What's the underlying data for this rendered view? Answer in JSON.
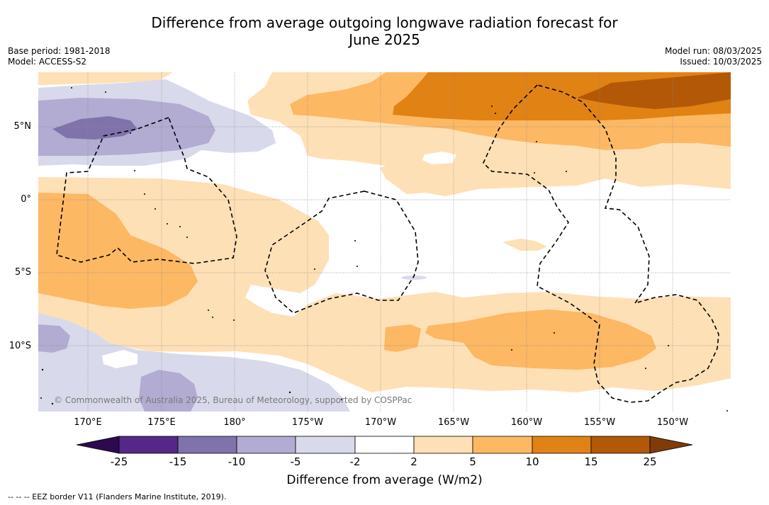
{
  "header": {
    "title_line1": "Difference from average outgoing longwave radiation forecast for",
    "title_line2": "June 2025",
    "base_period": "Base period: 1981-2018",
    "model": "Model: ACCESS-S2",
    "model_run": "Model run: 08/03/2025",
    "issued": "Issued: 10/03/2025"
  },
  "map": {
    "copyright": "© Commonwealth of Australia 2025, Bureau of Meteorology, supported by COSPPac",
    "lat_labels": [
      "5°N",
      "0°",
      "5°S",
      "10°S"
    ],
    "lon_labels": [
      "170°E",
      "175°E",
      "180°",
      "175°W",
      "170°W",
      "165°W",
      "160°W",
      "155°W",
      "150°W"
    ],
    "colors": {
      "neg_25": "#2d0a4e",
      "neg_15": "#542788",
      "neg_10": "#8073ac",
      "neg_5": "#b2abd2",
      "neg_2": "#d8daeb",
      "neutral": "#ffffff",
      "pos_2": "#fee0b6",
      "pos_5": "#fdb863",
      "pos_10": "#e08214",
      "pos_15": "#b35806",
      "pos_25": "#7f3b08"
    }
  },
  "colorbar": {
    "ticks": [
      "-25",
      "-15",
      "-10",
      "-5",
      "-2",
      "2",
      "5",
      "10",
      "15",
      "25"
    ],
    "label": "Difference from average (W/m2)"
  },
  "legend": {
    "eez_note": "-- -- -- EEZ border V11 (Flanders Marine Institute, 2019)."
  }
}
